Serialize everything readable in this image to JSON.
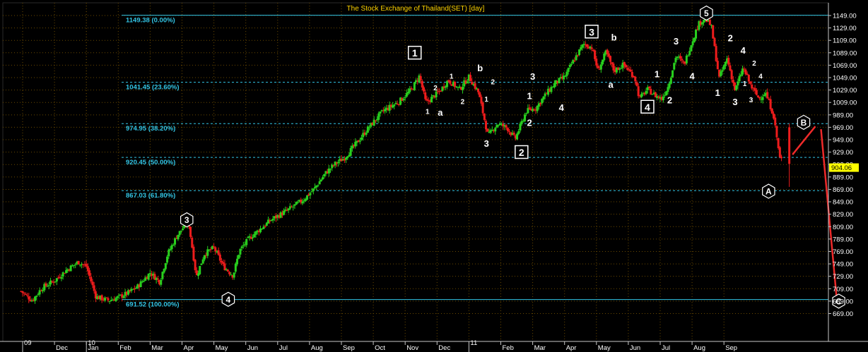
{
  "colors": {
    "up": "#28d01e",
    "down": "#ee1c1c",
    "fib": "#33c6e6",
    "grid": "#6a4a00",
    "price_tag": "#ffff00",
    "arrow": "#ee2a2a"
  },
  "chart_data": {
    "type": "candlestick",
    "title": "The Stock Exchange of Thailand(SET) [day]",
    "ylim": [
      660,
      1160
    ],
    "yticks": [
      1149.0,
      1129.0,
      1109.0,
      1089.0,
      1069.0,
      1049.0,
      1029.0,
      1009.0,
      989.0,
      969.0,
      949.0,
      929.0,
      909.0,
      889.0,
      869.0,
      849.0,
      829.0,
      809.0,
      789.0,
      769.0,
      749.0,
      729.0,
      709.0,
      689.0,
      669.0
    ],
    "last_price": "904.06",
    "xtick_labels": [
      {
        "t": 0.0,
        "label": "09",
        "year_marker": true
      },
      {
        "t": 1.0,
        "label": "Dec"
      },
      {
        "t": 2.0,
        "label": "10",
        "year_marker": true
      },
      {
        "t": 2.0,
        "label": "Jan"
      },
      {
        "t": 3.0,
        "label": "Feb"
      },
      {
        "t": 4.0,
        "label": "Mar"
      },
      {
        "t": 5.0,
        "label": "Apr"
      },
      {
        "t": 6.0,
        "label": "May"
      },
      {
        "t": 7.0,
        "label": "Jun"
      },
      {
        "t": 8.0,
        "label": "Jul"
      },
      {
        "t": 9.0,
        "label": "Aug"
      },
      {
        "t": 10.0,
        "label": "Sep"
      },
      {
        "t": 11.0,
        "label": "Oct"
      },
      {
        "t": 12.0,
        "label": "Nov"
      },
      {
        "t": 13.0,
        "label": "Dec"
      },
      {
        "t": 14.0,
        "label": "11",
        "year_marker": true
      },
      {
        "t": 15.0,
        "label": "Feb"
      },
      {
        "t": 16.0,
        "label": "Mar"
      },
      {
        "t": 17.0,
        "label": "Apr"
      },
      {
        "t": 18.0,
        "label": "May"
      },
      {
        "t": 19.0,
        "label": "Jun"
      },
      {
        "t": 20.0,
        "label": "Jul"
      },
      {
        "t": 21.0,
        "label": "Aug"
      },
      {
        "t": 22.0,
        "label": "Sep"
      }
    ],
    "fib_levels": [
      {
        "value": 1149.38,
        "label": "1149.38 (0.00%)",
        "style": "solid"
      },
      {
        "value": 1041.45,
        "label": "1041.45 (23.60%)",
        "style": "dashed"
      },
      {
        "value": 974.95,
        "label": "974.95 (38.20%)",
        "style": "dashed"
      },
      {
        "value": 920.45,
        "label": "920.45 (50.00%)",
        "style": "dashed"
      },
      {
        "value": 867.03,
        "label": "867.03 (61.80%)",
        "style": "dashed"
      },
      {
        "value": 691.52,
        "label": "691.52 (100.00%)",
        "style": "solid"
      }
    ],
    "price_path": [
      [
        -0.05,
        705
      ],
      [
        0.3,
        690
      ],
      [
        0.6,
        710
      ],
      [
        1.0,
        722
      ],
      [
        1.4,
        740
      ],
      [
        1.75,
        752
      ],
      [
        2.0,
        745
      ],
      [
        2.3,
        696
      ],
      [
        2.7,
        690
      ],
      [
        3.0,
        695
      ],
      [
        3.3,
        702
      ],
      [
        3.6,
        712
      ],
      [
        4.0,
        735
      ],
      [
        4.3,
        720
      ],
      [
        4.55,
        765
      ],
      [
        4.85,
        795
      ],
      [
        5.2,
        818
      ],
      [
        5.45,
        728
      ],
      [
        5.7,
        765
      ],
      [
        6.0,
        775
      ],
      [
        6.3,
        745
      ],
      [
        6.6,
        730
      ],
      [
        6.8,
        770
      ],
      [
        7.1,
        790
      ],
      [
        7.45,
        805
      ],
      [
        7.8,
        820
      ],
      [
        8.3,
        835
      ],
      [
        8.8,
        852
      ],
      [
        9.15,
        870
      ],
      [
        9.5,
        895
      ],
      [
        9.8,
        910
      ],
      [
        10.1,
        920
      ],
      [
        10.5,
        945
      ],
      [
        10.8,
        965
      ],
      [
        11.3,
        995
      ],
      [
        11.8,
        1010
      ],
      [
        12.2,
        1030
      ],
      [
        12.45,
        1052
      ],
      [
        12.65,
        1008
      ],
      [
        13.1,
        1028
      ],
      [
        13.35,
        1045
      ],
      [
        13.7,
        1030
      ],
      [
        14.0,
        1050
      ],
      [
        14.3,
        1025
      ],
      [
        14.6,
        955
      ],
      [
        14.9,
        975
      ],
      [
        15.2,
        968
      ],
      [
        15.45,
        950
      ],
      [
        15.8,
        995
      ],
      [
        16.1,
        1000
      ],
      [
        16.35,
        1018
      ],
      [
        16.7,
        1040
      ],
      [
        17.0,
        1050
      ],
      [
        17.3,
        1078
      ],
      [
        17.6,
        1103
      ],
      [
        17.85,
        1098
      ],
      [
        18.05,
        1060
      ],
      [
        18.3,
        1090
      ],
      [
        18.55,
        1060
      ],
      [
        18.85,
        1070
      ],
      [
        19.2,
        1050
      ],
      [
        19.35,
        1015
      ],
      [
        19.6,
        1030
      ],
      [
        19.85,
        1020
      ],
      [
        20.05,
        1015
      ],
      [
        20.25,
        1035
      ],
      [
        20.5,
        1085
      ],
      [
        20.75,
        1070
      ],
      [
        20.95,
        1100
      ],
      [
        21.2,
        1135
      ],
      [
        21.4,
        1145
      ],
      [
        21.6,
        1132
      ],
      [
        21.85,
        1048
      ],
      [
        22.1,
        1080
      ],
      [
        22.35,
        1028
      ],
      [
        22.6,
        1065
      ],
      [
        22.85,
        1035
      ],
      [
        23.1,
        1015
      ],
      [
        23.3,
        1025
      ],
      [
        23.55,
        990
      ],
      [
        23.75,
        920
      ],
      [
        23.85,
        915
      ]
    ],
    "final_drop": {
      "t": 24.05,
      "high": 975,
      "low": 873
    },
    "projection": [
      {
        "t": 24.15,
        "v": 925
      },
      {
        "t": 25.0,
        "v": 975
      },
      {
        "t": 25.55,
        "v": 695
      }
    ],
    "wave_labels": [
      {
        "t": 5.15,
        "v": 820,
        "text": "3",
        "style": "hex"
      },
      {
        "t": 6.45,
        "v": 692,
        "text": "4",
        "style": "hex"
      },
      {
        "t": 12.3,
        "v": 1088,
        "text": "1",
        "style": "box"
      },
      {
        "t": 14.55,
        "v": 942,
        "text": "3",
        "style": "plain"
      },
      {
        "t": 15.65,
        "v": 928,
        "text": "2",
        "style": "box"
      },
      {
        "t": 16.0,
        "v": 1050,
        "text": "3",
        "style": "plain"
      },
      {
        "t": 17.85,
        "v": 1122,
        "text": "3",
        "style": "box"
      },
      {
        "t": 19.6,
        "v": 1001,
        "text": "4",
        "style": "box"
      },
      {
        "t": 21.45,
        "v": 1153,
        "text": "5",
        "style": "hex"
      },
      {
        "t": 23.4,
        "v": 866,
        "text": "A",
        "style": "hex"
      },
      {
        "t": 24.5,
        "v": 977,
        "text": "B",
        "style": "hex"
      },
      {
        "t": 25.6,
        "v": 689,
        "text": "C",
        "style": "hex"
      },
      {
        "t": 12.95,
        "v": 1033,
        "text": "2",
        "style": "small"
      },
      {
        "t": 12.7,
        "v": 995,
        "text": "1",
        "style": "small"
      },
      {
        "t": 13.1,
        "v": 992,
        "text": "a",
        "style": "plain"
      },
      {
        "t": 13.45,
        "v": 1052,
        "text": "1",
        "style": "small"
      },
      {
        "t": 13.8,
        "v": 1011,
        "text": "2",
        "style": "small"
      },
      {
        "t": 14.35,
        "v": 1064,
        "text": "b",
        "style": "plain"
      },
      {
        "t": 14.75,
        "v": 1043,
        "text": "2",
        "style": "small"
      },
      {
        "t": 14.55,
        "v": 1015,
        "text": "1",
        "style": "small"
      },
      {
        "t": 15.9,
        "v": 1019,
        "text": "1",
        "style": "plain"
      },
      {
        "t": 15.9,
        "v": 976,
        "text": "2",
        "style": "plain"
      },
      {
        "t": 16.9,
        "v": 1000,
        "text": "4",
        "style": "plain"
      },
      {
        "t": 18.55,
        "v": 1113,
        "text": "b",
        "style": "plain"
      },
      {
        "t": 18.45,
        "v": 1037,
        "text": "a",
        "style": "plain"
      },
      {
        "t": 19.9,
        "v": 1054,
        "text": "1",
        "style": "plain"
      },
      {
        "t": 20.3,
        "v": 1012,
        "text": "2",
        "style": "plain"
      },
      {
        "t": 20.5,
        "v": 1107,
        "text": "3",
        "style": "plain"
      },
      {
        "t": 21.0,
        "v": 1051,
        "text": "4",
        "style": "plain"
      },
      {
        "t": 22.2,
        "v": 1112,
        "text": "2",
        "style": "plain"
      },
      {
        "t": 21.8,
        "v": 1024,
        "text": "1",
        "style": "plain"
      },
      {
        "t": 22.6,
        "v": 1092,
        "text": "4",
        "style": "plain"
      },
      {
        "t": 22.95,
        "v": 1073,
        "text": "2",
        "style": "small"
      },
      {
        "t": 22.65,
        "v": 1040,
        "text": "1",
        "style": "small"
      },
      {
        "t": 22.35,
        "v": 1009,
        "text": "3",
        "style": "plain"
      },
      {
        "t": 23.15,
        "v": 1052,
        "text": "4",
        "style": "small"
      },
      {
        "t": 22.85,
        "v": 1014,
        "text": "3",
        "style": "small"
      }
    ]
  }
}
